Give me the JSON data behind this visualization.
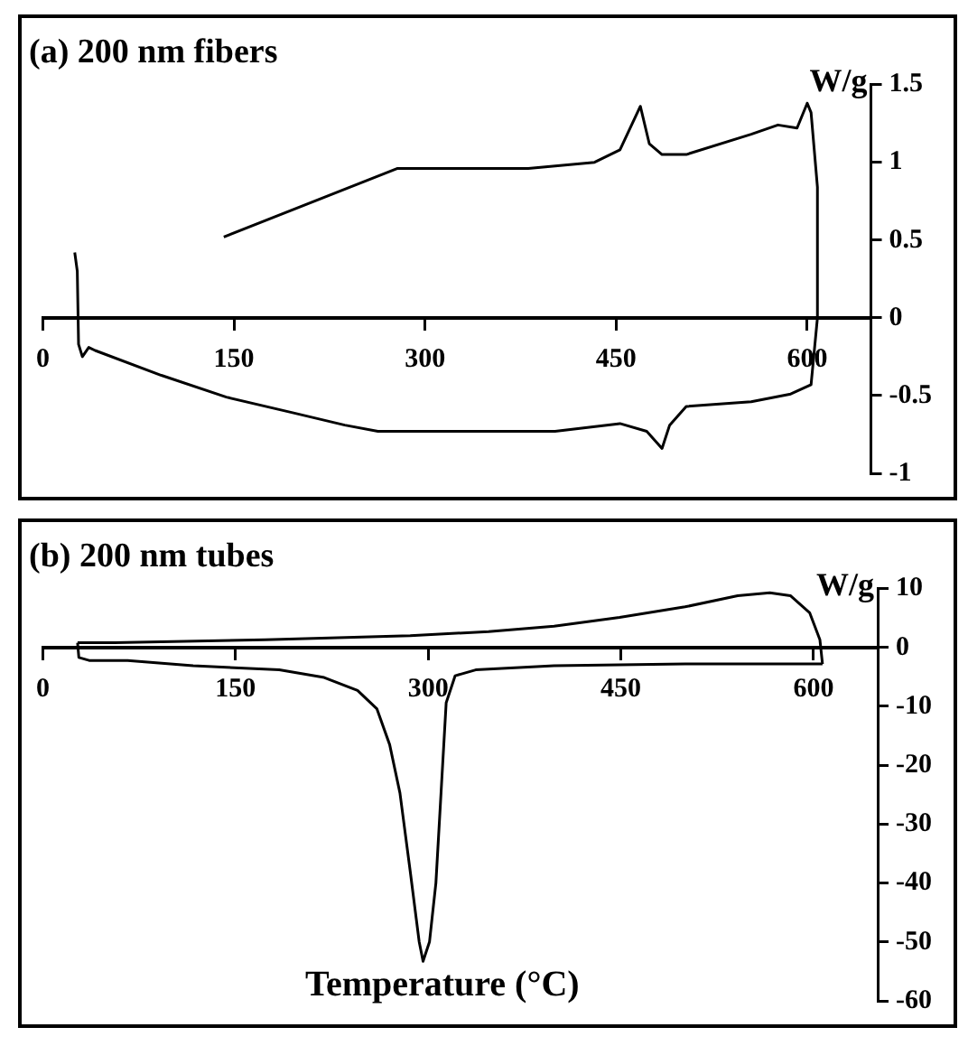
{
  "chart_data": [
    {
      "type": "line",
      "title": "(a) 200 nm fibers",
      "ylabel": "W/g",
      "xlim": [
        0,
        650
      ],
      "xticks": [
        0,
        150,
        300,
        450,
        600
      ],
      "ylim": [
        -1,
        1.5
      ],
      "yticks": [
        -1,
        -0.5,
        0,
        0.5,
        1,
        1.5
      ],
      "grid": false,
      "legend": false,
      "marker": "none",
      "line_style": "solid",
      "series": [
        {
          "color": "#000000",
          "x": [
            25,
            27,
            28,
            31,
            36,
            41,
            93,
            144,
            196,
            237,
            263,
            402,
            453,
            474,
            486,
            492,
            505,
            556,
            587,
            603,
            608,
            608,
            603,
            600,
            592,
            577,
            556,
            505,
            486,
            476,
            469,
            453,
            433,
            381,
            278,
            142
          ],
          "values": [
            0.42,
            0.3,
            -0.17,
            -0.25,
            -0.19,
            -0.21,
            -0.37,
            -0.51,
            -0.61,
            -0.69,
            -0.73,
            -0.73,
            -0.68,
            -0.73,
            -0.84,
            -0.69,
            -0.57,
            -0.54,
            -0.49,
            -0.43,
            0.0,
            0.84,
            1.32,
            1.38,
            1.22,
            1.24,
            1.18,
            1.05,
            1.05,
            1.12,
            1.36,
            1.08,
            1.0,
            0.96,
            0.96,
            0.52
          ]
        }
      ]
    },
    {
      "type": "line",
      "title": "(b) 200 nm tubes",
      "ylabel": "W/g",
      "xlabel": "Temperature (°C)",
      "xlim": [
        0,
        650
      ],
      "xticks": [
        0,
        150,
        300,
        450,
        600
      ],
      "ylim": [
        -60,
        10
      ],
      "yticks": [
        -60,
        -50,
        -40,
        -30,
        -20,
        -10,
        0,
        10
      ],
      "grid": false,
      "legend": false,
      "marker": "none",
      "line_style": "solid",
      "series": [
        {
          "color": "#000000",
          "x": [
            27,
            28,
            36,
            66,
            117,
            184,
            219,
            245,
            260,
            270,
            278,
            286,
            293,
            296,
            301,
            306,
            310,
            314,
            321,
            337,
            398,
            500,
            607
          ],
          "values": [
            0.8,
            -1.7,
            -2.2,
            -2.2,
            -3.1,
            -3.8,
            -5.1,
            -7.3,
            -10.4,
            -16.5,
            -24.7,
            -38,
            -50,
            -53.3,
            -50,
            -40,
            -24.7,
            -9.4,
            -4.8,
            -3.8,
            -3.1,
            -2.8,
            -2.8
          ]
        },
        {
          "color": "#000000",
          "x": [
            27,
            56,
            173,
            286,
            347,
            398,
            449,
            500,
            541,
            566,
            582,
            597,
            605,
            607
          ],
          "values": [
            0.8,
            0.8,
            1.3,
            2,
            2.7,
            3.6,
            5.1,
            6.9,
            8.8,
            9.3,
            8.8,
            5.9,
            1.3,
            -2.8
          ]
        }
      ]
    }
  ]
}
